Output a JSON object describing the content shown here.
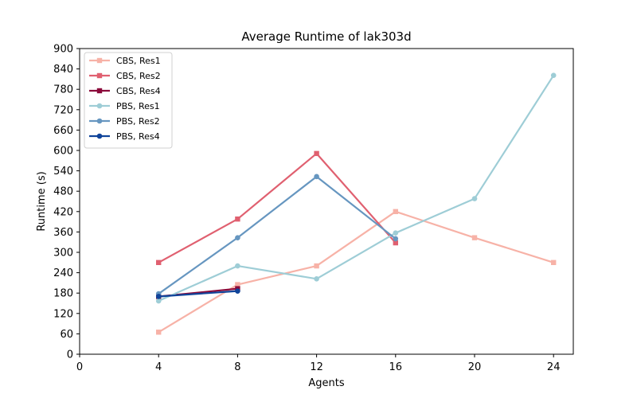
{
  "chart_data": {
    "type": "line",
    "title": "Average Runtime of lak303d",
    "xlabel": "Agents",
    "ylabel": "Runtime (s)",
    "xlim": [
      0,
      25
    ],
    "ylim": [
      0,
      900
    ],
    "xticks": [
      0,
      4,
      8,
      12,
      16,
      20,
      24
    ],
    "yticks": [
      0,
      60,
      120,
      180,
      240,
      300,
      360,
      420,
      480,
      540,
      600,
      660,
      720,
      780,
      840,
      900
    ],
    "grid": false,
    "legend_position": "upper-left",
    "series": [
      {
        "name": "CBS, Res1",
        "color": "#f7b2a7",
        "marker": "square",
        "x": [
          4,
          8,
          12,
          16,
          20,
          24
        ],
        "y": [
          65,
          205,
          260,
          420,
          343,
          270
        ]
      },
      {
        "name": "CBS, Res2",
        "color": "#e06070",
        "marker": "square",
        "x": [
          4,
          8,
          12,
          16
        ],
        "y": [
          270,
          398,
          591,
          328
        ]
      },
      {
        "name": "CBS, Res4",
        "color": "#8b0a3a",
        "marker": "square",
        "x": [
          4,
          8
        ],
        "y": [
          170,
          193
        ]
      },
      {
        "name": "PBS, Res1",
        "color": "#9ecdd6",
        "marker": "circle",
        "x": [
          4,
          8,
          12,
          16,
          20,
          24
        ],
        "y": [
          157,
          260,
          222,
          357,
          458,
          821
        ]
      },
      {
        "name": "PBS, Res2",
        "color": "#6696c0",
        "marker": "circle",
        "x": [
          4,
          8,
          12,
          16
        ],
        "y": [
          178,
          343,
          523,
          340
        ]
      },
      {
        "name": "PBS, Res4",
        "color": "#10449a",
        "marker": "circle",
        "x": [
          4,
          8
        ],
        "y": [
          170,
          186
        ]
      }
    ]
  }
}
